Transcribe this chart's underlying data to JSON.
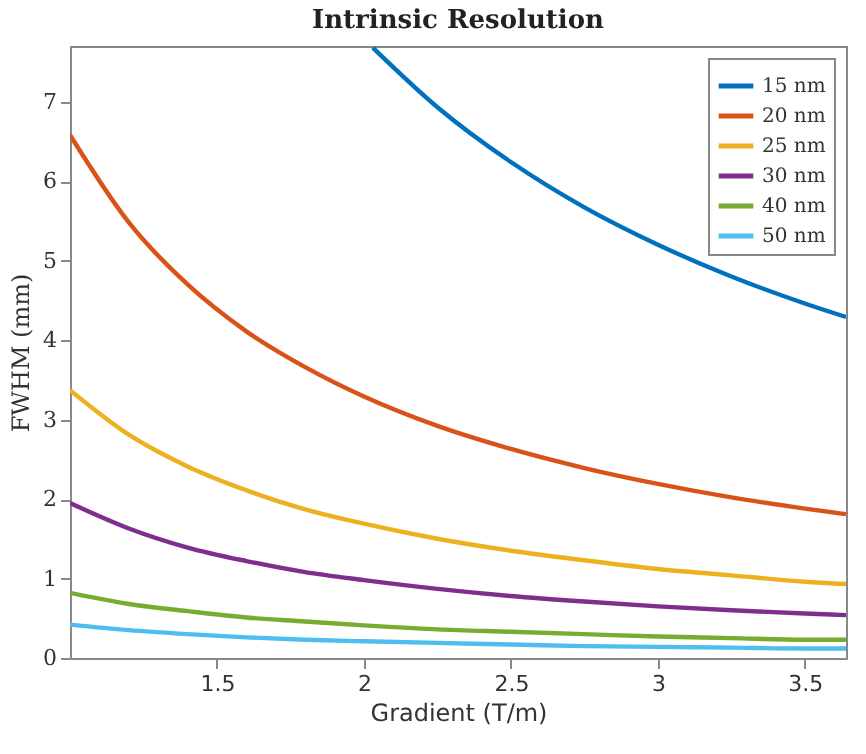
{
  "chart_data": {
    "type": "line",
    "title": "Intrinsic Resolution",
    "xlabel": "Gradient (T/m)",
    "ylabel": "FWHM (mm)",
    "x": [
      1,
      1.2,
      1.4,
      1.6,
      1.8,
      2,
      2.25,
      2.5,
      2.75,
      3,
      3.25,
      3.5,
      3.64
    ],
    "series": [
      {
        "name": "15 nm",
        "color": "#0072bd",
        "x": [
          2.03,
          2.25,
          2.5,
          2.75,
          3,
          3.25,
          3.5,
          3.64
        ],
        "values": [
          7.68,
          6.93,
          6.24,
          5.67,
          5.2,
          4.8,
          4.46,
          4.29
        ]
      },
      {
        "name": "20 nm",
        "color": "#d95319",
        "values": [
          6.58,
          5.48,
          4.7,
          4.11,
          3.66,
          3.29,
          2.92,
          2.63,
          2.39,
          2.19,
          2.02,
          1.88,
          1.81
        ]
      },
      {
        "name": "25 nm",
        "color": "#edb120",
        "values": [
          3.37,
          2.81,
          2.41,
          2.11,
          1.87,
          1.69,
          1.5,
          1.35,
          1.23,
          1.12,
          1.04,
          0.96,
          0.93
        ]
      },
      {
        "name": "30 nm",
        "color": "#7e2f8e",
        "values": [
          1.95,
          1.63,
          1.39,
          1.22,
          1.08,
          0.98,
          0.87,
          0.78,
          0.71,
          0.65,
          0.6,
          0.56,
          0.54
        ]
      },
      {
        "name": "40 nm",
        "color": "#77ac30",
        "values": [
          0.82,
          0.68,
          0.59,
          0.51,
          0.46,
          0.41,
          0.36,
          0.33,
          0.3,
          0.27,
          0.25,
          0.23,
          0.23
        ]
      },
      {
        "name": "50 nm",
        "color": "#4dbeee",
        "values": [
          0.42,
          0.35,
          0.3,
          0.26,
          0.23,
          0.21,
          0.19,
          0.17,
          0.15,
          0.14,
          0.13,
          0.12,
          0.12
        ]
      }
    ],
    "xlim": [
      1,
      3.64
    ],
    "ylim": [
      0,
      7.7
    ],
    "xticks": [
      1.5,
      2,
      2.5,
      3,
      3.5
    ],
    "yticks": [
      0,
      1,
      2,
      3,
      4,
      5,
      6,
      7
    ],
    "legend": "top right"
  }
}
